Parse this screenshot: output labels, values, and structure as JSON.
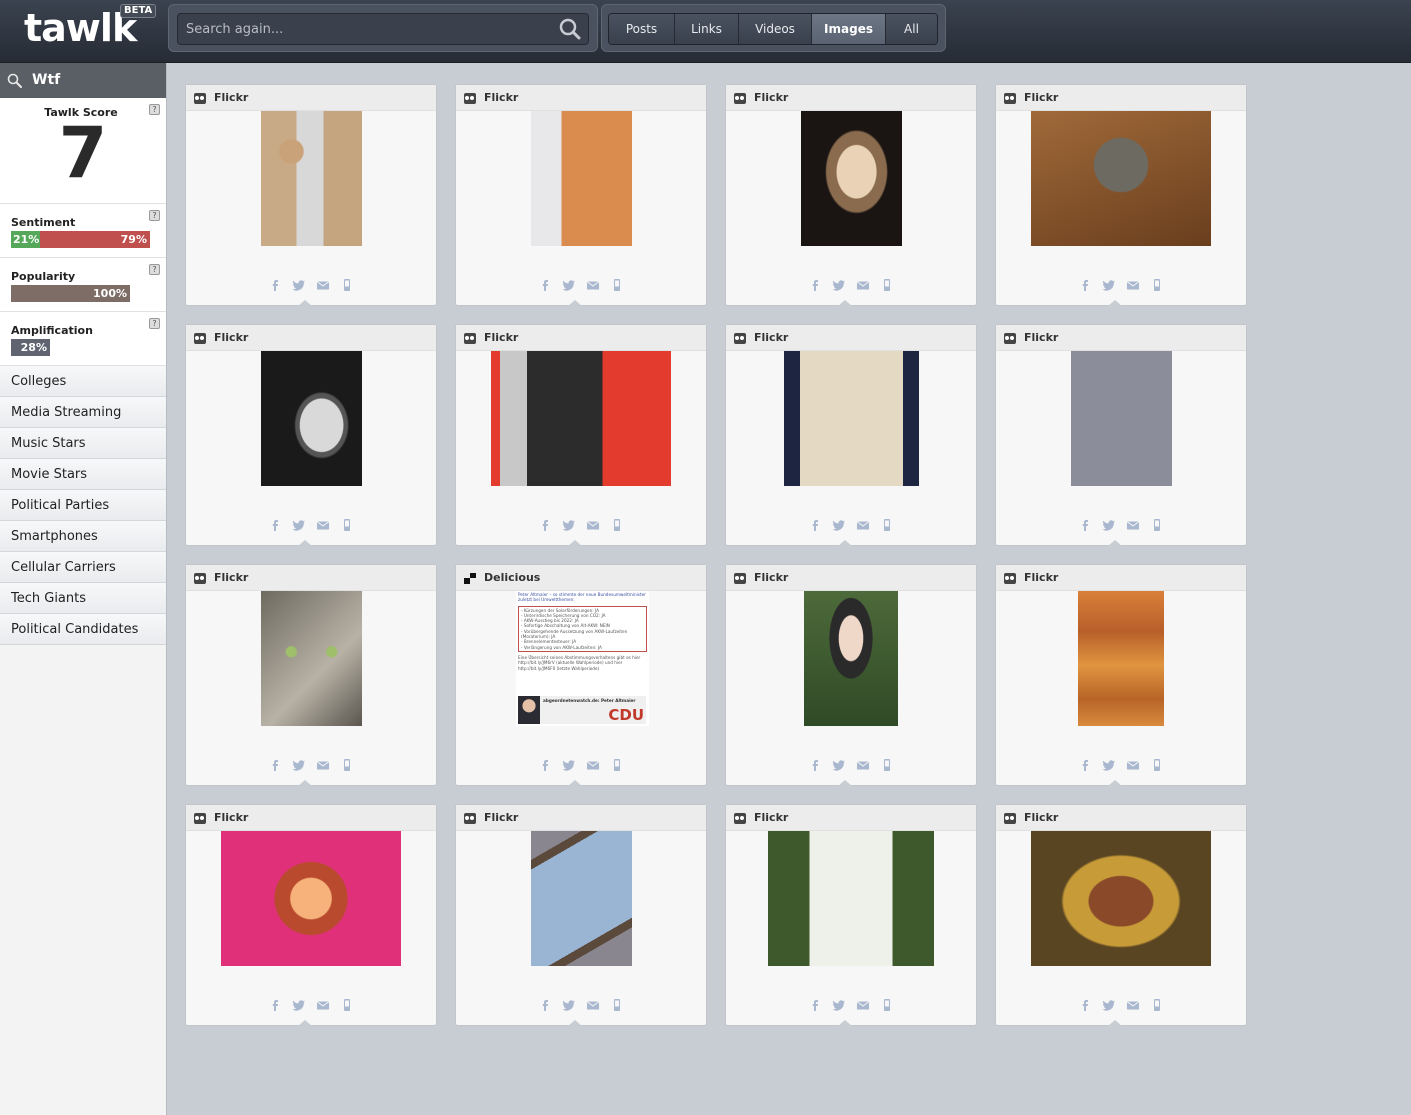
{
  "app": {
    "logo": "tawlk",
    "badge": "BETA"
  },
  "search": {
    "placeholder": "Search again..."
  },
  "tabs": [
    "Posts",
    "Links",
    "Videos",
    "Images",
    "All"
  ],
  "active_tab": "Images",
  "sidebar": {
    "query": "Wtf",
    "score": {
      "label": "Tawlk Score",
      "value": "7"
    },
    "help_label": "?",
    "sentiment": {
      "label": "Sentiment",
      "positive": "21%",
      "negative": "79%"
    },
    "popularity": {
      "label": "Popularity",
      "value": "100%"
    },
    "amplification": {
      "label": "Amplification",
      "value": "28%"
    },
    "categories": [
      "Colleges",
      "Media Streaming",
      "Music Stars",
      "Movie Stars",
      "Political Parties",
      "Smartphones",
      "Cellular Carriers",
      "Tech Giants",
      "Political Candidates"
    ]
  },
  "results": [
    {
      "source": "Flickr"
    },
    {
      "source": "Flickr"
    },
    {
      "source": "Flickr"
    },
    {
      "source": "Flickr"
    },
    {
      "source": "Flickr"
    },
    {
      "source": "Flickr"
    },
    {
      "source": "Flickr"
    },
    {
      "source": "Flickr"
    },
    {
      "source": "Flickr"
    },
    {
      "source": "Delicious"
    },
    {
      "source": "Flickr"
    },
    {
      "source": "Flickr"
    },
    {
      "source": "Flickr"
    },
    {
      "source": "Flickr"
    },
    {
      "source": "Flickr"
    },
    {
      "source": "Flickr"
    }
  ],
  "delicious_snippet": {
    "title": "Peter Altmaier – so stimmte der neue Bundesumweltminister zuletzt bei Umweltthemen:",
    "lines": [
      "Kürzungen der Solarförderungen: JA",
      "Unterirdische Speicherung von CO2: JA",
      "AKW-Ausstieg bis 2022: JA",
      "Sofortige Abschaltung von Alt-AKW: NEIN",
      "Vorübergehende Aussetzung von AKW-Laufzeiten (Moratorium): JA",
      "Brennelementesteuer: JA",
      "Verlängerung von AKW-Laufzeiten: JA"
    ],
    "footer": "Eine Übersicht seines Abstimmungsverhaltens gibt es hier http://bit.ly/JM6rV (aktuelle Wahlperiode) und hier http://bit.ly/JM6F0 (letzte Wahlperiode)",
    "site": "abgeordnetenwatch.de: Peter Altmaier",
    "party": "CDU"
  },
  "colors": {
    "sentiment_positive": "#55a85a",
    "sentiment_negative": "#c0504d",
    "popularity": "#7e6c66",
    "amplification": "#5f6470",
    "share_icons": "#a9b7cf"
  },
  "share_icons": [
    "facebook-icon",
    "twitter-icon",
    "email-icon",
    "mobile-icon"
  ]
}
